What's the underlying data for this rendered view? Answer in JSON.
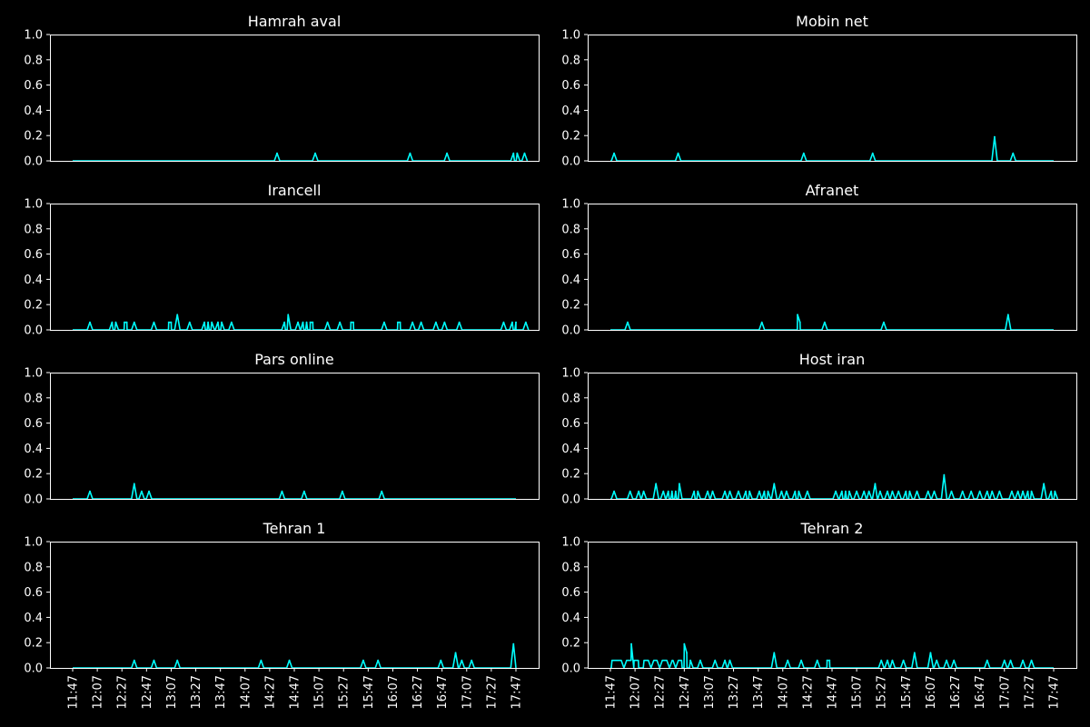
{
  "figure": {
    "background": "#000000",
    "foreground": "#ffffff",
    "line_color": "#00ffff"
  },
  "chart_data": [
    {
      "type": "line",
      "title": "Hamrah aval",
      "ylim": [
        0,
        1
      ],
      "y_ticks": [
        "0.0",
        "0.2",
        "0.4",
        "0.6",
        "0.8",
        "1.0"
      ],
      "x_ticks": [],
      "x_start": "11:47",
      "x_end": "17:47",
      "baseline": 0,
      "spikes": [
        {
          "time": "14:33",
          "value": 0.06
        },
        {
          "time": "15:04",
          "value": 0.06
        },
        {
          "time": "16:21",
          "value": 0.06
        },
        {
          "time": "16:51",
          "value": 0.06
        },
        {
          "time": "17:45",
          "value": 0.06
        },
        {
          "time": "17:48",
          "value": 0.06
        },
        {
          "time": "17:54",
          "value": 0.06
        }
      ]
    },
    {
      "type": "line",
      "title": "Mobin net",
      "ylim": [
        0,
        1
      ],
      "y_ticks": [
        "0.0",
        "0.2",
        "0.4",
        "0.6",
        "0.8",
        "1.0"
      ],
      "x_ticks": [],
      "x_start": "11:47",
      "x_end": "17:47",
      "baseline": 0,
      "spikes": [
        {
          "time": "11:50",
          "value": 0.06
        },
        {
          "time": "12:42",
          "value": 0.06
        },
        {
          "time": "14:24",
          "value": 0.06
        },
        {
          "time": "15:20",
          "value": 0.06
        },
        {
          "time": "16:59",
          "value": 0.19
        },
        {
          "time": "17:14",
          "value": 0.06
        }
      ]
    },
    {
      "type": "line",
      "title": "Irancell",
      "ylim": [
        0,
        1
      ],
      "y_ticks": [
        "0.0",
        "0.2",
        "0.4",
        "0.6",
        "0.8",
        "1.0"
      ],
      "x_ticks": [],
      "x_start": "11:47",
      "x_end": "17:47",
      "baseline": 0,
      "spikes": [
        {
          "time": "12:01",
          "value": 0.06
        },
        {
          "time": "12:19",
          "value": 0.06
        },
        {
          "time": "12:22",
          "value": 0.06
        },
        {
          "time": "12:29",
          "value": 0.06
        },
        {
          "time": "12:31",
          "value": 0.06
        },
        {
          "time": "12:37",
          "value": 0.06
        },
        {
          "time": "12:53",
          "value": 0.06
        },
        {
          "time": "13:05",
          "value": 0.06
        },
        {
          "time": "13:07",
          "value": 0.06
        },
        {
          "time": "13:12",
          "value": 0.12
        },
        {
          "time": "13:22",
          "value": 0.06
        },
        {
          "time": "13:34",
          "value": 0.06
        },
        {
          "time": "13:37",
          "value": 0.06
        },
        {
          "time": "13:40",
          "value": 0.06
        },
        {
          "time": "13:45",
          "value": 0.06
        },
        {
          "time": "13:48",
          "value": 0.06
        },
        {
          "time": "13:56",
          "value": 0.06
        },
        {
          "time": "14:39",
          "value": 0.06
        },
        {
          "time": "14:42",
          "value": 0.12
        },
        {
          "time": "14:50",
          "value": 0.06
        },
        {
          "time": "14:54",
          "value": 0.06
        },
        {
          "time": "14:57",
          "value": 0.06
        },
        {
          "time": "15:00",
          "value": 0.06
        },
        {
          "time": "15:02",
          "value": 0.06
        },
        {
          "time": "15:14",
          "value": 0.06
        },
        {
          "time": "15:24",
          "value": 0.06
        },
        {
          "time": "15:33",
          "value": 0.06
        },
        {
          "time": "15:35",
          "value": 0.06
        },
        {
          "time": "16:00",
          "value": 0.06
        },
        {
          "time": "16:11",
          "value": 0.06
        },
        {
          "time": "16:13",
          "value": 0.06
        },
        {
          "time": "16:23",
          "value": 0.06
        },
        {
          "time": "16:30",
          "value": 0.06
        },
        {
          "time": "16:42",
          "value": 0.06
        },
        {
          "time": "16:49",
          "value": 0.06
        },
        {
          "time": "17:01",
          "value": 0.06
        },
        {
          "time": "17:37",
          "value": 0.06
        },
        {
          "time": "17:44",
          "value": 0.06
        },
        {
          "time": "17:47",
          "value": 0.06
        },
        {
          "time": "17:55",
          "value": 0.06
        }
      ]
    },
    {
      "type": "line",
      "title": "Afranet",
      "ylim": [
        0,
        1
      ],
      "y_ticks": [
        "0.0",
        "0.2",
        "0.4",
        "0.6",
        "0.8",
        "1.0"
      ],
      "x_ticks": [],
      "x_start": "11:47",
      "x_end": "17:47",
      "baseline": 0,
      "spikes": [
        {
          "time": "12:01",
          "value": 0.06
        },
        {
          "time": "13:50",
          "value": 0.06
        },
        {
          "time": "14:19",
          "value": 0.12
        },
        {
          "time": "14:21",
          "value": 0.06
        },
        {
          "time": "14:41",
          "value": 0.06
        },
        {
          "time": "15:29",
          "value": 0.06
        },
        {
          "time": "17:10",
          "value": 0.12
        }
      ]
    },
    {
      "type": "line",
      "title": "Pars online",
      "ylim": [
        0,
        1
      ],
      "y_ticks": [
        "0.0",
        "0.2",
        "0.4",
        "0.6",
        "0.8",
        "1.0"
      ],
      "x_ticks": [],
      "x_start": "11:47",
      "x_end": "17:47",
      "baseline": 0,
      "spikes": [
        {
          "time": "12:01",
          "value": 0.06
        },
        {
          "time": "12:37",
          "value": 0.12
        },
        {
          "time": "12:43",
          "value": 0.06
        },
        {
          "time": "12:49",
          "value": 0.06
        },
        {
          "time": "14:37",
          "value": 0.06
        },
        {
          "time": "14:55",
          "value": 0.06
        },
        {
          "time": "15:26",
          "value": 0.06
        },
        {
          "time": "15:58",
          "value": 0.06
        }
      ]
    },
    {
      "type": "line",
      "title": "Host iran",
      "ylim": [
        0,
        1
      ],
      "y_ticks": [
        "0.0",
        "0.2",
        "0.4",
        "0.6",
        "0.8",
        "1.0"
      ],
      "x_ticks": [],
      "x_start": "11:47",
      "x_end": "17:47",
      "baseline": 0,
      "spikes": [
        {
          "time": "11:50",
          "value": 0.06
        },
        {
          "time": "12:03",
          "value": 0.06
        },
        {
          "time": "12:10",
          "value": 0.06
        },
        {
          "time": "12:14",
          "value": 0.06
        },
        {
          "time": "12:24",
          "value": 0.12
        },
        {
          "time": "12:30",
          "value": 0.06
        },
        {
          "time": "12:34",
          "value": 0.06
        },
        {
          "time": "12:37",
          "value": 0.06
        },
        {
          "time": "12:40",
          "value": 0.06
        },
        {
          "time": "12:43",
          "value": 0.12
        },
        {
          "time": "12:55",
          "value": 0.06
        },
        {
          "time": "12:58",
          "value": 0.06
        },
        {
          "time": "13:06",
          "value": 0.06
        },
        {
          "time": "13:10",
          "value": 0.06
        },
        {
          "time": "13:20",
          "value": 0.06
        },
        {
          "time": "13:24",
          "value": 0.06
        },
        {
          "time": "13:31",
          "value": 0.06
        },
        {
          "time": "13:37",
          "value": 0.06
        },
        {
          "time": "13:40",
          "value": 0.06
        },
        {
          "time": "13:48",
          "value": 0.06
        },
        {
          "time": "13:52",
          "value": 0.06
        },
        {
          "time": "13:55",
          "value": 0.06
        },
        {
          "time": "14:00",
          "value": 0.12
        },
        {
          "time": "14:06",
          "value": 0.06
        },
        {
          "time": "14:10",
          "value": 0.06
        },
        {
          "time": "14:17",
          "value": 0.06
        },
        {
          "time": "14:20",
          "value": 0.06
        },
        {
          "time": "14:27",
          "value": 0.06
        },
        {
          "time": "14:50",
          "value": 0.06
        },
        {
          "time": "14:55",
          "value": 0.06
        },
        {
          "time": "14:58",
          "value": 0.06
        },
        {
          "time": "15:01",
          "value": 0.06
        },
        {
          "time": "15:07",
          "value": 0.06
        },
        {
          "time": "15:13",
          "value": 0.06
        },
        {
          "time": "15:17",
          "value": 0.06
        },
        {
          "time": "15:22",
          "value": 0.12
        },
        {
          "time": "15:26",
          "value": 0.06
        },
        {
          "time": "15:32",
          "value": 0.06
        },
        {
          "time": "15:36",
          "value": 0.06
        },
        {
          "time": "15:41",
          "value": 0.06
        },
        {
          "time": "15:47",
          "value": 0.06
        },
        {
          "time": "15:50",
          "value": 0.06
        },
        {
          "time": "15:56",
          "value": 0.06
        },
        {
          "time": "16:05",
          "value": 0.06
        },
        {
          "time": "16:10",
          "value": 0.06
        },
        {
          "time": "16:18",
          "value": 0.19
        },
        {
          "time": "16:24",
          "value": 0.06
        },
        {
          "time": "16:33",
          "value": 0.06
        },
        {
          "time": "16:40",
          "value": 0.06
        },
        {
          "time": "16:47",
          "value": 0.06
        },
        {
          "time": "16:53",
          "value": 0.06
        },
        {
          "time": "16:57",
          "value": 0.06
        },
        {
          "time": "17:03",
          "value": 0.06
        },
        {
          "time": "17:13",
          "value": 0.06
        },
        {
          "time": "17:18",
          "value": 0.06
        },
        {
          "time": "17:22",
          "value": 0.06
        },
        {
          "time": "17:26",
          "value": 0.06
        },
        {
          "time": "17:29",
          "value": 0.06
        },
        {
          "time": "17:39",
          "value": 0.12
        },
        {
          "time": "17:45",
          "value": 0.06
        },
        {
          "time": "17:48",
          "value": 0.06
        }
      ]
    },
    {
      "type": "line",
      "title": "Tehran 1",
      "ylim": [
        0,
        1
      ],
      "y_ticks": [
        "0.0",
        "0.2",
        "0.4",
        "0.6",
        "0.8",
        "1.0"
      ],
      "x_ticks": [
        "11:47",
        "12:07",
        "12:27",
        "12:47",
        "13:07",
        "13:27",
        "13:47",
        "14:07",
        "14:27",
        "14:47",
        "15:07",
        "15:27",
        "15:47",
        "16:07",
        "16:27",
        "16:47",
        "17:07",
        "17:27",
        "17:47"
      ],
      "x_start": "11:47",
      "x_end": "17:47",
      "baseline": 0,
      "spikes": [
        {
          "time": "12:37",
          "value": 0.06
        },
        {
          "time": "12:53",
          "value": 0.06
        },
        {
          "time": "13:12",
          "value": 0.06
        },
        {
          "time": "14:20",
          "value": 0.06
        },
        {
          "time": "14:43",
          "value": 0.06
        },
        {
          "time": "15:43",
          "value": 0.06
        },
        {
          "time": "15:55",
          "value": 0.06
        },
        {
          "time": "16:46",
          "value": 0.06
        },
        {
          "time": "16:58",
          "value": 0.12
        },
        {
          "time": "17:03",
          "value": 0.06
        },
        {
          "time": "17:11",
          "value": 0.06
        },
        {
          "time": "17:45",
          "value": 0.19
        }
      ]
    },
    {
      "type": "line",
      "title": "Tehran 2",
      "ylim": [
        0,
        1
      ],
      "y_ticks": [
        "0.0",
        "0.2",
        "0.4",
        "0.6",
        "0.8",
        "1.0"
      ],
      "x_ticks": [
        "11:47",
        "12:07",
        "12:27",
        "12:47",
        "13:07",
        "13:27",
        "13:47",
        "14:07",
        "14:27",
        "14:47",
        "15:07",
        "15:27",
        "15:47",
        "16:07",
        "16:27",
        "16:47",
        "17:07",
        "17:27",
        "17:47"
      ],
      "x_start": "11:47",
      "x_end": "17:47",
      "baseline": 0,
      "plateaus": [
        {
          "from": "11:48",
          "to": "12:10",
          "value": 0.06
        },
        {
          "from": "12:14",
          "to": "12:45",
          "value": 0.06
        }
      ],
      "dips": [
        {
          "time": "11:58",
          "value": 0.0
        },
        {
          "time": "12:06",
          "value": 0.0
        },
        {
          "time": "12:10",
          "value": 0.0
        },
        {
          "time": "12:20",
          "value": 0.0
        },
        {
          "time": "12:27",
          "value": 0.0
        },
        {
          "time": "12:35",
          "value": 0.0
        },
        {
          "time": "12:40",
          "value": 0.0
        }
      ],
      "spikes": [
        {
          "time": "12:04",
          "value": 0.19
        },
        {
          "time": "12:47",
          "value": 0.19
        },
        {
          "time": "12:49",
          "value": 0.12
        },
        {
          "time": "12:52",
          "value": 0.06
        },
        {
          "time": "13:00",
          "value": 0.06
        },
        {
          "time": "13:12",
          "value": 0.06
        },
        {
          "time": "13:20",
          "value": 0.06
        },
        {
          "time": "13:24",
          "value": 0.06
        },
        {
          "time": "14:00",
          "value": 0.12
        },
        {
          "time": "14:11",
          "value": 0.06
        },
        {
          "time": "14:22",
          "value": 0.06
        },
        {
          "time": "14:35",
          "value": 0.06
        },
        {
          "time": "14:43",
          "value": 0.06
        },
        {
          "time": "14:45",
          "value": 0.06
        },
        {
          "time": "15:27",
          "value": 0.06
        },
        {
          "time": "15:32",
          "value": 0.06
        },
        {
          "time": "15:36",
          "value": 0.06
        },
        {
          "time": "15:45",
          "value": 0.06
        },
        {
          "time": "15:54",
          "value": 0.12
        },
        {
          "time": "16:07",
          "value": 0.12
        },
        {
          "time": "16:12",
          "value": 0.06
        },
        {
          "time": "16:20",
          "value": 0.06
        },
        {
          "time": "16:26",
          "value": 0.06
        },
        {
          "time": "16:53",
          "value": 0.06
        },
        {
          "time": "17:07",
          "value": 0.06
        },
        {
          "time": "17:12",
          "value": 0.06
        },
        {
          "time": "17:22",
          "value": 0.06
        },
        {
          "time": "17:29",
          "value": 0.06
        }
      ]
    }
  ]
}
